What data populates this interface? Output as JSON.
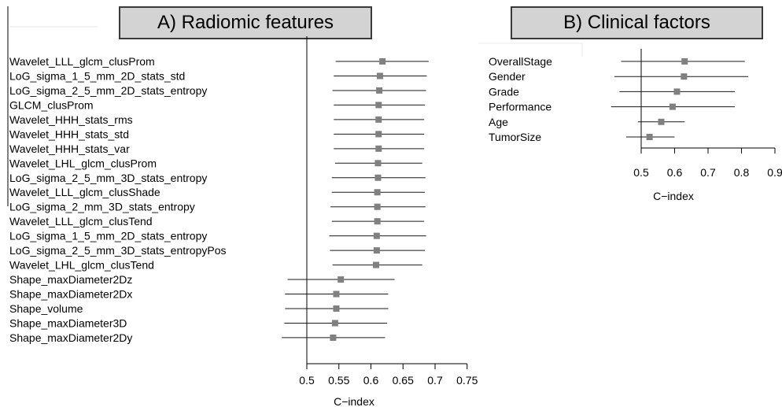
{
  "chart_data": [
    {
      "type": "forest",
      "title": "A) Radiomic features",
      "xlabel": "C−index",
      "xlim": [
        0.5,
        0.75
      ],
      "xticks": [
        "0.5",
        "0.55",
        "0.6",
        "0.65",
        "0.7",
        "0.75"
      ],
      "reference_line": 0.5,
      "marker_color": "#808080",
      "rows": [
        {
          "label": "Wavelet_LLL_glcm_clusProm",
          "estimate": 0.618,
          "lower": 0.545,
          "upper": 0.69
        },
        {
          "label": "LoG_sigma_1_5_mm_2D_stats_std",
          "estimate": 0.614,
          "lower": 0.542,
          "upper": 0.687
        },
        {
          "label": "LoG_sigma_2_5_mm_2D_stats_entropy",
          "estimate": 0.613,
          "lower": 0.54,
          "upper": 0.686
        },
        {
          "label": "GLCM_clusProm",
          "estimate": 0.612,
          "lower": 0.542,
          "upper": 0.684
        },
        {
          "label": "Wavelet_HHH_stats_rms",
          "estimate": 0.612,
          "lower": 0.542,
          "upper": 0.683
        },
        {
          "label": "Wavelet_HHH_stats_std",
          "estimate": 0.612,
          "lower": 0.542,
          "upper": 0.683
        },
        {
          "label": "Wavelet_HHH_stats_var",
          "estimate": 0.612,
          "lower": 0.542,
          "upper": 0.683
        },
        {
          "label": "Wavelet_LHL_glcm_clusProm",
          "estimate": 0.611,
          "lower": 0.544,
          "upper": 0.68
        },
        {
          "label": "LoG_sigma_2_5_mm_3D_stats_entropy",
          "estimate": 0.611,
          "lower": 0.539,
          "upper": 0.685
        },
        {
          "label": "Wavelet_LLL_glcm_clusShade",
          "estimate": 0.61,
          "lower": 0.539,
          "upper": 0.684
        },
        {
          "label": "LoG_sigma_2_mm_3D_stats_entropy",
          "estimate": 0.61,
          "lower": 0.537,
          "upper": 0.685
        },
        {
          "label": "Wavelet_LLL_glcm_clusTend",
          "estimate": 0.61,
          "lower": 0.539,
          "upper": 0.683
        },
        {
          "label": "LoG_sigma_1_5_mm_2D_stats_entropy",
          "estimate": 0.609,
          "lower": 0.535,
          "upper": 0.686
        },
        {
          "label": "LoG_sigma_2_5_mm_3D_stats_entropyPos",
          "estimate": 0.609,
          "lower": 0.536,
          "upper": 0.684
        },
        {
          "label": "Wavelet_LHL_glcm_clusTend",
          "estimate": 0.608,
          "lower": 0.54,
          "upper": 0.68
        },
        {
          "label": "Shape_maxDiameter2Dz",
          "estimate": 0.553,
          "lower": 0.47,
          "upper": 0.637
        },
        {
          "label": "Shape_maxDiameter2Dx",
          "estimate": 0.546,
          "lower": 0.466,
          "upper": 0.627
        },
        {
          "label": "Shape_volume",
          "estimate": 0.546,
          "lower": 0.466,
          "upper": 0.627
        },
        {
          "label": "Shape_maxDiameter3D",
          "estimate": 0.544,
          "lower": 0.465,
          "upper": 0.625
        },
        {
          "label": "Shape_maxDiameter2Dy",
          "estimate": 0.541,
          "lower": 0.461,
          "upper": 0.622
        }
      ]
    },
    {
      "type": "forest",
      "title": "B) Clinical factors",
      "xlabel": "C−index",
      "xlim": [
        0.5,
        0.9
      ],
      "xticks": [
        "0.5",
        "0.6",
        "0.7",
        "0.8",
        "0.9"
      ],
      "reference_line": 0.5,
      "marker_color": "#808080",
      "rows": [
        {
          "label": "OverallStage",
          "estimate": 0.63,
          "lower": 0.44,
          "upper": 0.81
        },
        {
          "label": "Gender",
          "estimate": 0.628,
          "lower": 0.42,
          "upper": 0.82
        },
        {
          "label": "Grade",
          "estimate": 0.607,
          "lower": 0.435,
          "upper": 0.78
        },
        {
          "label": "Performance",
          "estimate": 0.594,
          "lower": 0.41,
          "upper": 0.78
        },
        {
          "label": "Age",
          "estimate": 0.56,
          "lower": 0.49,
          "upper": 0.63
        },
        {
          "label": "TumorSize",
          "estimate": 0.525,
          "lower": 0.455,
          "upper": 0.6
        }
      ]
    }
  ]
}
